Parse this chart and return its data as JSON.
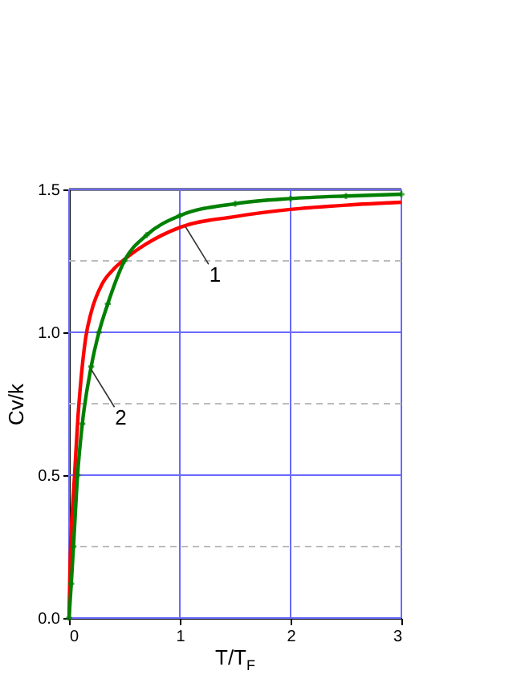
{
  "chart_data": {
    "type": "line",
    "xlabel": "T/T$_{F}$",
    "ylabel": "Cv/k",
    "xlim": [
      0,
      3
    ],
    "ylim": [
      0,
      1.5
    ],
    "xticks": [
      0,
      1,
      2,
      3
    ],
    "yticks": [
      {
        "value": 0,
        "label": "0.0"
      },
      {
        "value": 0.5,
        "label": "0.5"
      },
      {
        "value": 1,
        "label": "1.0"
      },
      {
        "value": 1.5,
        "label": "1.5"
      }
    ],
    "grid": true,
    "line_style": "solid",
    "ref_lines": [
      {
        "axis": "y",
        "value": 0.25,
        "color": "#bbbbbb",
        "line_style": "dashed"
      },
      {
        "axis": "y",
        "value": 0.75,
        "color": "#bbbbbb",
        "line_style": "dashed"
      },
      {
        "axis": "y",
        "value": 1.25,
        "color": "#bbbbbb",
        "line_style": "dashed"
      }
    ],
    "annotations": [
      {
        "text": "1",
        "x": 1.05,
        "y": 1.37
      },
      {
        "text": "2",
        "x": 0.2,
        "y": 0.87
      }
    ],
    "series": [
      {
        "color": "#ff0000",
        "marker": "none",
        "x": [
          0,
          0.01,
          0.02,
          0.05,
          0.08,
          0.1,
          0.15,
          0.2,
          0.3,
          0.4,
          0.5,
          0.7,
          1,
          1.5,
          2,
          2.5,
          3
        ],
        "values": [
          0,
          0.2,
          0.3,
          0.5,
          0.7,
          0.8,
          0.98,
          1.07,
          1.17,
          1.22,
          1.255,
          1.31,
          1.367,
          1.405,
          1.43,
          1.445,
          1.455
        ]
      },
      {
        "color": "#008000",
        "marker": "cross",
        "x": [
          0,
          0.02,
          0.04,
          0.077,
          0.12,
          0.2,
          0.27,
          0.35,
          0.5,
          0.7,
          1,
          1.5,
          2,
          2.5,
          3
        ],
        "values": [
          0,
          0.12,
          0.25,
          0.5,
          0.68,
          0.88,
          1.0,
          1.1,
          1.25,
          1.34,
          1.408,
          1.45,
          1.468,
          1.477,
          1.483
        ]
      }
    ]
  }
}
